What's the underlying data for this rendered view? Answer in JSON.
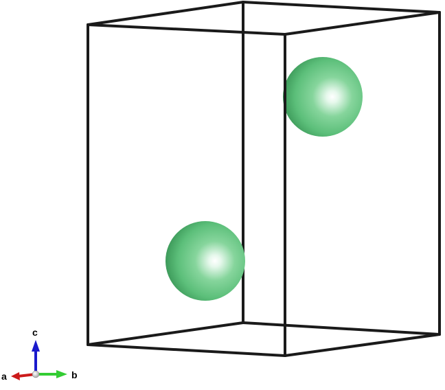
{
  "structure": {
    "cell_edge_color": "#1a1a1a",
    "atom_color": "#5cbf7a",
    "atom_count": 2
  },
  "axes": {
    "a_label": "a",
    "b_label": "b",
    "c_label": "c",
    "a_color": "#cc1a1a",
    "b_color": "#33cc33",
    "c_color": "#1a1acc"
  }
}
